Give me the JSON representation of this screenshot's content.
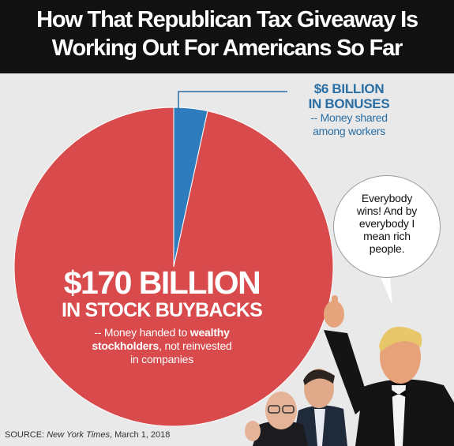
{
  "header": {
    "title_line1": "How That Republican Tax Giveaway Is",
    "title_line2": "Working Out For Americans So Far"
  },
  "chart_data": {
    "type": "pie",
    "categories": [
      "$6 BILLION IN BONUSES",
      "$170 BILLION IN STOCK BUYBACKS"
    ],
    "values": [
      6,
      170
    ],
    "colors": [
      "#2e7cbd",
      "#d84a4b"
    ],
    "labels": {
      "small": {
        "amount": "$6 BILLION",
        "sub": "IN BONUSES",
        "desc_line1": "-- Money shared",
        "desc_line2": "among workers"
      },
      "big": {
        "amount": "$170 BILLION",
        "sub": "IN STOCK BUYBACKS",
        "desc_prefix": "-- Money handed to ",
        "desc_bold": "wealthy",
        "desc_line2_bold": "stockholders",
        "desc_line2_rest": ", not reinvested",
        "desc_line3": "in companies"
      }
    },
    "legend": "none",
    "grid": false
  },
  "bubble": {
    "line1": "Everybody",
    "line2": "wins! And by",
    "line3": "everybody I",
    "line4": "mean rich",
    "line5": "people."
  },
  "source": {
    "prefix": "SOURCE: ",
    "publication": "New York Times",
    "date": ", March 1, 2018"
  },
  "colors": {
    "background": "#e9e9ea",
    "header": "#111111",
    "callout": "#2a6ea3"
  }
}
